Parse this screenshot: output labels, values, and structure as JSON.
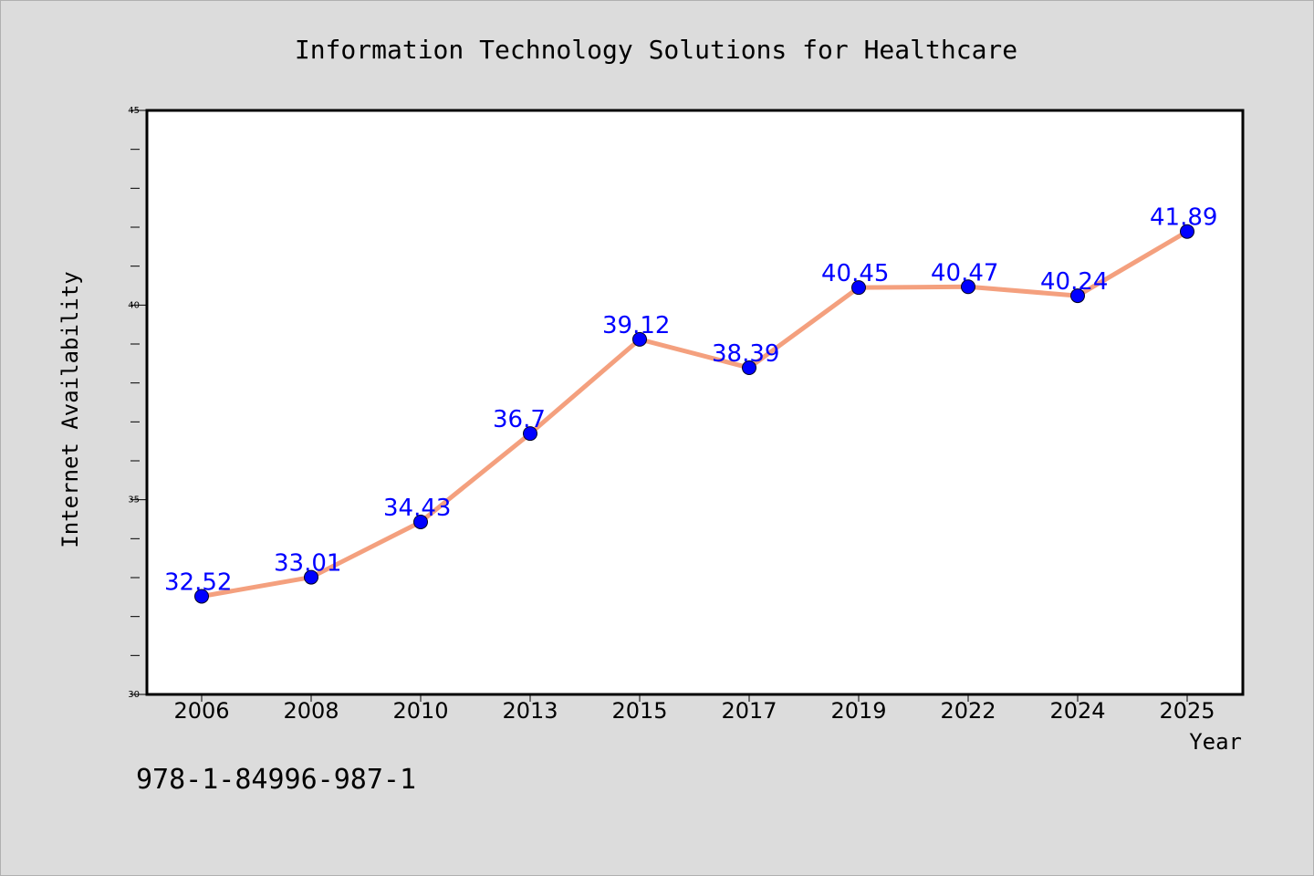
{
  "chart_data": {
    "type": "line",
    "title": "Information Technology Solutions for Healthcare",
    "xlabel": "Year",
    "ylabel": "Internet Availability",
    "categories": [
      "2006",
      "2008",
      "2010",
      "2013",
      "2015",
      "2017",
      "2019",
      "2022",
      "2024",
      "2025"
    ],
    "values": [
      32.52,
      33.01,
      34.43,
      36.7,
      39.12,
      38.39,
      40.45,
      40.47,
      40.24,
      41.89
    ],
    "value_labels": [
      "32.52",
      "33.01",
      "34.43",
      "36.7",
      "39.12",
      "38.39",
      "40.45",
      "40.47",
      "40.24",
      "41.89"
    ],
    "ylim": [
      30,
      45
    ],
    "yticks": [
      "30",
      "35",
      "40",
      "45"
    ],
    "grid": false,
    "colors": {
      "line": "#f4a07e",
      "marker": "#0000ff",
      "label": "#0000ff",
      "background": "#dcdcdc",
      "plot_background": "#ffffff"
    }
  },
  "footer": {
    "isbn": "978-1-84996-987-1"
  }
}
